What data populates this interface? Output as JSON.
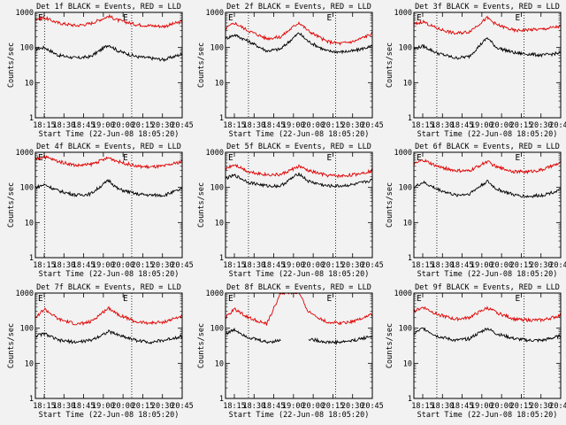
{
  "figure": {
    "background": "#f2f2f2",
    "axis_color": "#000000",
    "events_color": "#000000",
    "lld_color": "#e00000"
  },
  "chart_data": [
    {
      "type": "line",
      "title": "Det 1f BLACK = Events, RED = LLD",
      "xlabel": "Start Time (22-Jun-08 18:05:20)",
      "ylabel": "Counts/sec",
      "yscale": "log",
      "ylim": [
        1,
        1000
      ],
      "yticks": [
        "1",
        "10",
        "100",
        "1000"
      ],
      "xlim_minutes": [
        0,
        160
      ],
      "xticks": [
        "18:15",
        "18:30",
        "18:45",
        "19:00",
        "20:00",
        "20:15",
        "20:30",
        "20:45"
      ],
      "x_minutes": [
        0,
        10,
        25,
        45,
        60,
        80,
        90,
        110,
        125,
        140,
        160
      ],
      "markers": [
        "E",
        "E"
      ],
      "marker_lines_minutes": [
        10,
        105
      ],
      "series": [
        {
          "color": "#000000",
          "values": [
            90,
            100,
            60,
            50,
            55,
            120,
            80,
            55,
            50,
            45,
            65
          ]
        },
        {
          "color": "#e00000",
          "values": [
            650,
            700,
            500,
            420,
            480,
            780,
            600,
            450,
            420,
            400,
            550
          ]
        }
      ]
    },
    {
      "type": "line",
      "title": "Det 2f BLACK = Events, RED = LLD",
      "xlabel": "Start Time (22-Jun-08 18:05:20)",
      "ylabel": "Counts/sec",
      "yscale": "log",
      "ylim": [
        1,
        1000
      ],
      "yticks": [
        "1",
        "10",
        "100",
        "1000"
      ],
      "xlim_minutes": [
        0,
        160
      ],
      "xticks": [
        "18:15",
        "18:30",
        "18:45",
        "19:00",
        "20:00",
        "20:15",
        "20:30",
        "20:45"
      ],
      "x_minutes": [
        0,
        10,
        25,
        45,
        60,
        80,
        90,
        110,
        125,
        140,
        160
      ],
      "markers": [
        "E",
        "E"
      ],
      "marker_lines_minutes": [
        25,
        120
      ],
      "series": [
        {
          "color": "#000000",
          "values": [
            180,
            230,
            150,
            80,
            90,
            260,
            150,
            80,
            75,
            80,
            110
          ]
        },
        {
          "color": "#e00000",
          "values": [
            350,
            500,
            300,
            180,
            200,
            520,
            300,
            150,
            130,
            150,
            250
          ]
        }
      ]
    },
    {
      "type": "line",
      "title": "Det 3f BLACK = Events, RED = LLD",
      "xlabel": "Start Time (22-Jun-08 18:05:20)",
      "ylabel": "Counts/sec",
      "yscale": "log",
      "ylim": [
        1,
        1000
      ],
      "yticks": [
        "1",
        "10",
        "100",
        "1000"
      ],
      "xlim_minutes": [
        0,
        160
      ],
      "xticks": [
        "18:15",
        "18:30",
        "18:45",
        "19:00",
        "20:00",
        "20:15",
        "20:30",
        "20:45"
      ],
      "x_minutes": [
        0,
        10,
        25,
        45,
        60,
        80,
        90,
        110,
        125,
        140,
        160
      ],
      "markers": [
        "E",
        "E"
      ],
      "marker_lines_minutes": [
        25,
        120
      ],
      "series": [
        {
          "color": "#000000",
          "values": [
            90,
            110,
            70,
            50,
            55,
            190,
            100,
            70,
            65,
            60,
            70
          ]
        },
        {
          "color": "#e00000",
          "values": [
            450,
            550,
            350,
            250,
            280,
            700,
            450,
            300,
            320,
            330,
            400
          ]
        }
      ]
    },
    {
      "type": "line",
      "title": "Det 4f BLACK = Events, RED = LLD",
      "xlabel": "Start Time (22-Jun-08 18:05:20)",
      "ylabel": "Counts/sec",
      "yscale": "log",
      "ylim": [
        1,
        1000
      ],
      "yticks": [
        "1",
        "10",
        "100",
        "1000"
      ],
      "xlim_minutes": [
        0,
        160
      ],
      "xticks": [
        "18:15",
        "18:30",
        "18:45",
        "19:00",
        "20:00",
        "20:15",
        "20:30",
        "20:45"
      ],
      "x_minutes": [
        0,
        10,
        25,
        45,
        60,
        80,
        90,
        110,
        125,
        140,
        160
      ],
      "markers": [
        "E",
        "E"
      ],
      "marker_lines_minutes": [
        10,
        105
      ],
      "series": [
        {
          "color": "#000000",
          "values": [
            100,
            120,
            80,
            60,
            65,
            160,
            90,
            65,
            60,
            60,
            90
          ]
        },
        {
          "color": "#e00000",
          "values": [
            650,
            750,
            550,
            420,
            450,
            700,
            550,
            400,
            380,
            400,
            550
          ]
        }
      ]
    },
    {
      "type": "line",
      "title": "Det 5f BLACK = Events, RED = LLD",
      "xlabel": "Start Time (22-Jun-08 18:05:20)",
      "ylabel": "Counts/sec",
      "yscale": "log",
      "ylim": [
        1,
        1000
      ],
      "yticks": [
        "1",
        "10",
        "100",
        "1000"
      ],
      "xlim_minutes": [
        0,
        160
      ],
      "xticks": [
        "18:15",
        "18:30",
        "18:45",
        "19:00",
        "20:00",
        "20:15",
        "20:30",
        "20:45"
      ],
      "x_minutes": [
        0,
        10,
        25,
        45,
        60,
        80,
        90,
        110,
        125,
        140,
        160
      ],
      "markers": [
        "E",
        "E"
      ],
      "marker_lines_minutes": [
        25,
        120
      ],
      "series": [
        {
          "color": "#000000",
          "values": [
            180,
            220,
            140,
            110,
            110,
            250,
            150,
            110,
            110,
            120,
            160
          ]
        },
        {
          "color": "#e00000",
          "values": [
            350,
            450,
            280,
            230,
            230,
            400,
            300,
            220,
            210,
            230,
            300
          ]
        }
      ]
    },
    {
      "type": "line",
      "title": "Det 6f BLACK = Events, RED = LLD",
      "xlabel": "Start Time (22-Jun-08 18:05:20)",
      "ylabel": "Counts/sec",
      "yscale": "log",
      "ylim": [
        1,
        1000
      ],
      "yticks": [
        "1",
        "10",
        "100",
        "1000"
      ],
      "xlim_minutes": [
        0,
        160
      ],
      "xticks": [
        "18:15",
        "18:30",
        "18:45",
        "19:00",
        "20:00",
        "20:15",
        "20:30",
        "20:45"
      ],
      "x_minutes": [
        0,
        10,
        25,
        45,
        60,
        80,
        90,
        110,
        125,
        140,
        160
      ],
      "markers": [
        "E",
        "E"
      ],
      "marker_lines_minutes": [
        25,
        120
      ],
      "series": [
        {
          "color": "#000000",
          "values": [
            100,
            140,
            90,
            60,
            65,
            150,
            90,
            60,
            55,
            60,
            85
          ]
        },
        {
          "color": "#e00000",
          "values": [
            450,
            600,
            400,
            300,
            290,
            550,
            380,
            280,
            280,
            320,
            500
          ]
        }
      ]
    },
    {
      "type": "line",
      "title": "Det 7f BLACK = Events, RED = LLD",
      "xlabel": "Start Time (22-Jun-08 18:05:20)",
      "ylabel": "Counts/sec",
      "yscale": "log",
      "ylim": [
        1,
        1000
      ],
      "yticks": [
        "1",
        "10",
        "100",
        "1000"
      ],
      "xlim_minutes": [
        0,
        160
      ],
      "xticks": [
        "18:15",
        "18:30",
        "18:45",
        "19:00",
        "20:00",
        "20:15",
        "20:30",
        "20:45"
      ],
      "x_minutes": [
        0,
        10,
        25,
        45,
        60,
        80,
        90,
        110,
        125,
        140,
        160
      ],
      "markers": [
        "E",
        "E"
      ],
      "marker_lines_minutes": [
        10,
        105
      ],
      "series": [
        {
          "color": "#000000",
          "values": [
            60,
            70,
            45,
            40,
            45,
            80,
            65,
            45,
            40,
            45,
            60
          ]
        },
        {
          "color": "#e00000",
          "values": [
            200,
            350,
            180,
            130,
            150,
            380,
            250,
            150,
            140,
            150,
            220
          ]
        }
      ]
    },
    {
      "type": "line",
      "title": "Det 8f BLACK = Events, RED = LLD",
      "xlabel": "Start Time (22-Jun-08 18:05:20)",
      "ylabel": "Counts/sec",
      "yscale": "log",
      "ylim": [
        1,
        1000
      ],
      "yticks": [
        "1",
        "10",
        "100",
        "1000"
      ],
      "xlim_minutes": [
        0,
        160
      ],
      "xticks": [
        "18:15",
        "18:30",
        "18:45",
        "19:00",
        "20:00",
        "20:15",
        "20:30",
        "20:45"
      ],
      "x_minutes": [
        0,
        10,
        25,
        45,
        60,
        80,
        90,
        110,
        125,
        140,
        160
      ],
      "markers": [
        "E",
        "E"
      ],
      "marker_lines_minutes": [
        25,
        120
      ],
      "series": [
        {
          "color": "#000000",
          "values": [
            70,
            90,
            55,
            40,
            45,
            null,
            50,
            40,
            40,
            45,
            60
          ]
        },
        {
          "color": "#e00000",
          "values": [
            200,
            350,
            200,
            130,
            1000,
            1000,
            300,
            150,
            140,
            160,
            250
          ]
        }
      ]
    },
    {
      "type": "line",
      "title": "Det 9f BLACK = Events, RED = LLD",
      "xlabel": "Start Time (22-Jun-08 18:05:20)",
      "ylabel": "Counts/sec",
      "yscale": "log",
      "ylim": [
        1,
        1000
      ],
      "yticks": [
        "1",
        "10",
        "100",
        "1000"
      ],
      "xlim_minutes": [
        0,
        160
      ],
      "xticks": [
        "18:15",
        "18:30",
        "18:45",
        "19:00",
        "20:00",
        "20:15",
        "20:30",
        "20:45"
      ],
      "x_minutes": [
        0,
        10,
        25,
        45,
        60,
        80,
        90,
        110,
        125,
        140,
        160
      ],
      "markers": [
        "E",
        "E"
      ],
      "marker_lines_minutes": [
        25,
        120
      ],
      "series": [
        {
          "color": "#000000",
          "values": [
            70,
            100,
            60,
            45,
            50,
            100,
            70,
            50,
            45,
            45,
            60
          ]
        },
        {
          "color": "#e00000",
          "values": [
            300,
            400,
            250,
            180,
            200,
            380,
            280,
            180,
            170,
            170,
            230
          ]
        }
      ]
    }
  ]
}
